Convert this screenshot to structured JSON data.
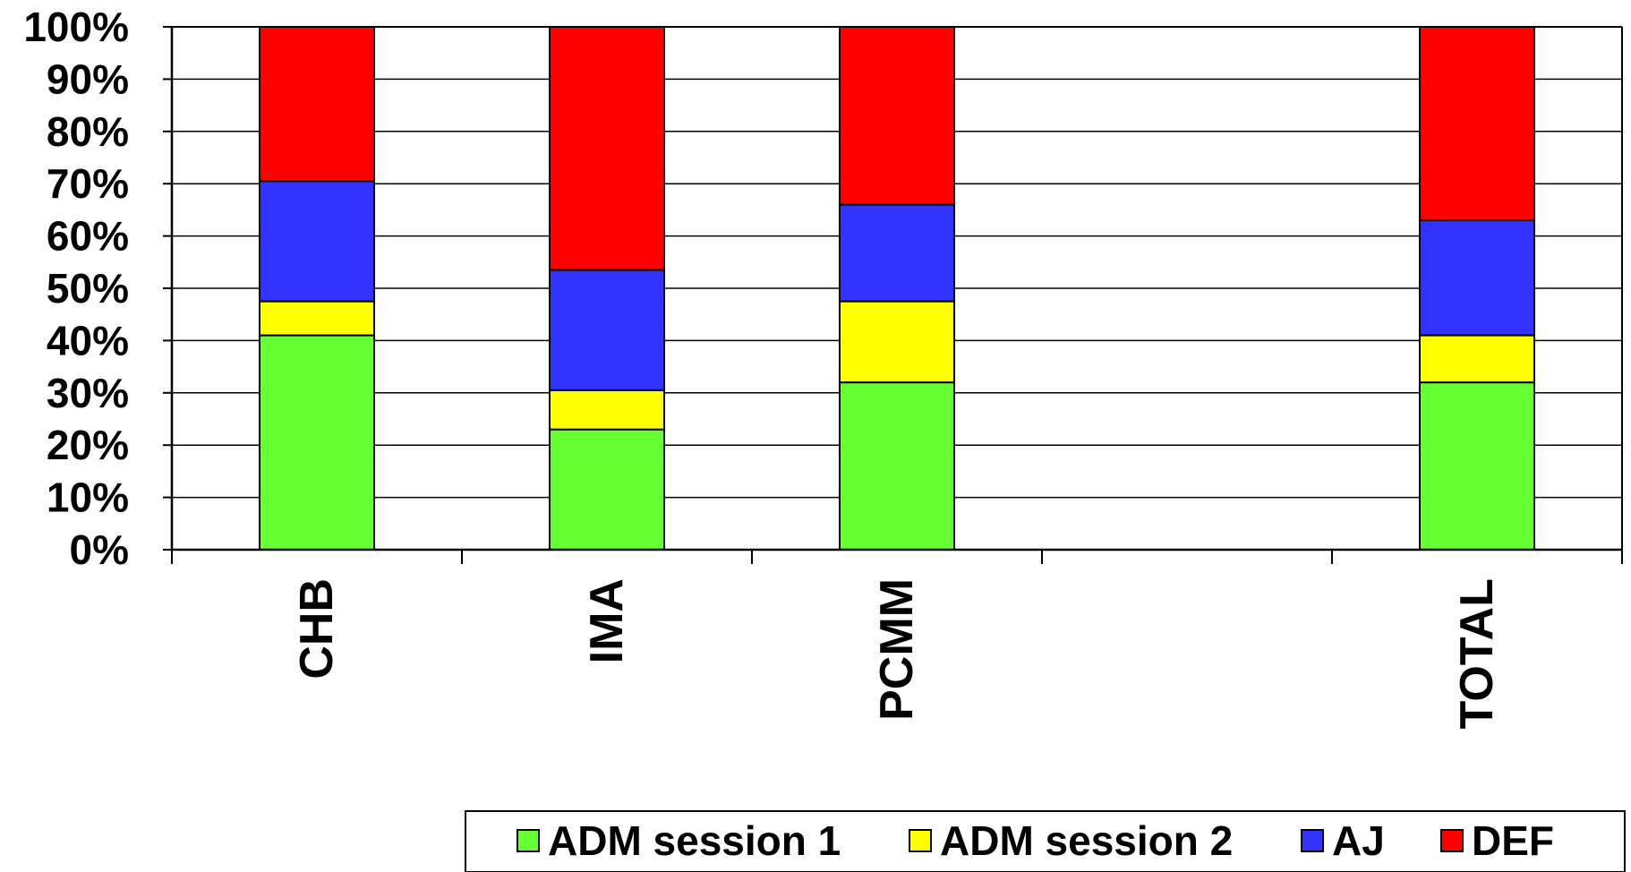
{
  "chart_data": {
    "type": "bar",
    "stacked": true,
    "percent_stacked": true,
    "title": "",
    "xlabel": "",
    "ylabel": "",
    "categories": [
      "CHB",
      "IMA",
      "PCMM",
      "",
      "TOTAL"
    ],
    "series": [
      {
        "name": "ADM session 1",
        "color": "#66ff33",
        "values": [
          41,
          23,
          32,
          null,
          32
        ]
      },
      {
        "name": "ADM session 2",
        "color": "#ffff00",
        "values": [
          6.5,
          7.5,
          15.5,
          null,
          9
        ]
      },
      {
        "name": "AJ",
        "color": "#3333ff",
        "values": [
          23,
          23,
          18.5,
          null,
          22
        ]
      },
      {
        "name": "DEF",
        "color": "#ff0000",
        "values": [
          29.5,
          46.5,
          34,
          null,
          37
        ]
      }
    ],
    "ylim": [
      0,
      100
    ],
    "y_ticks": [
      "0%",
      "10%",
      "20%",
      "30%",
      "40%",
      "50%",
      "60%",
      "70%",
      "80%",
      "90%",
      "100%"
    ],
    "grid": true,
    "legend_position": "bottom"
  }
}
